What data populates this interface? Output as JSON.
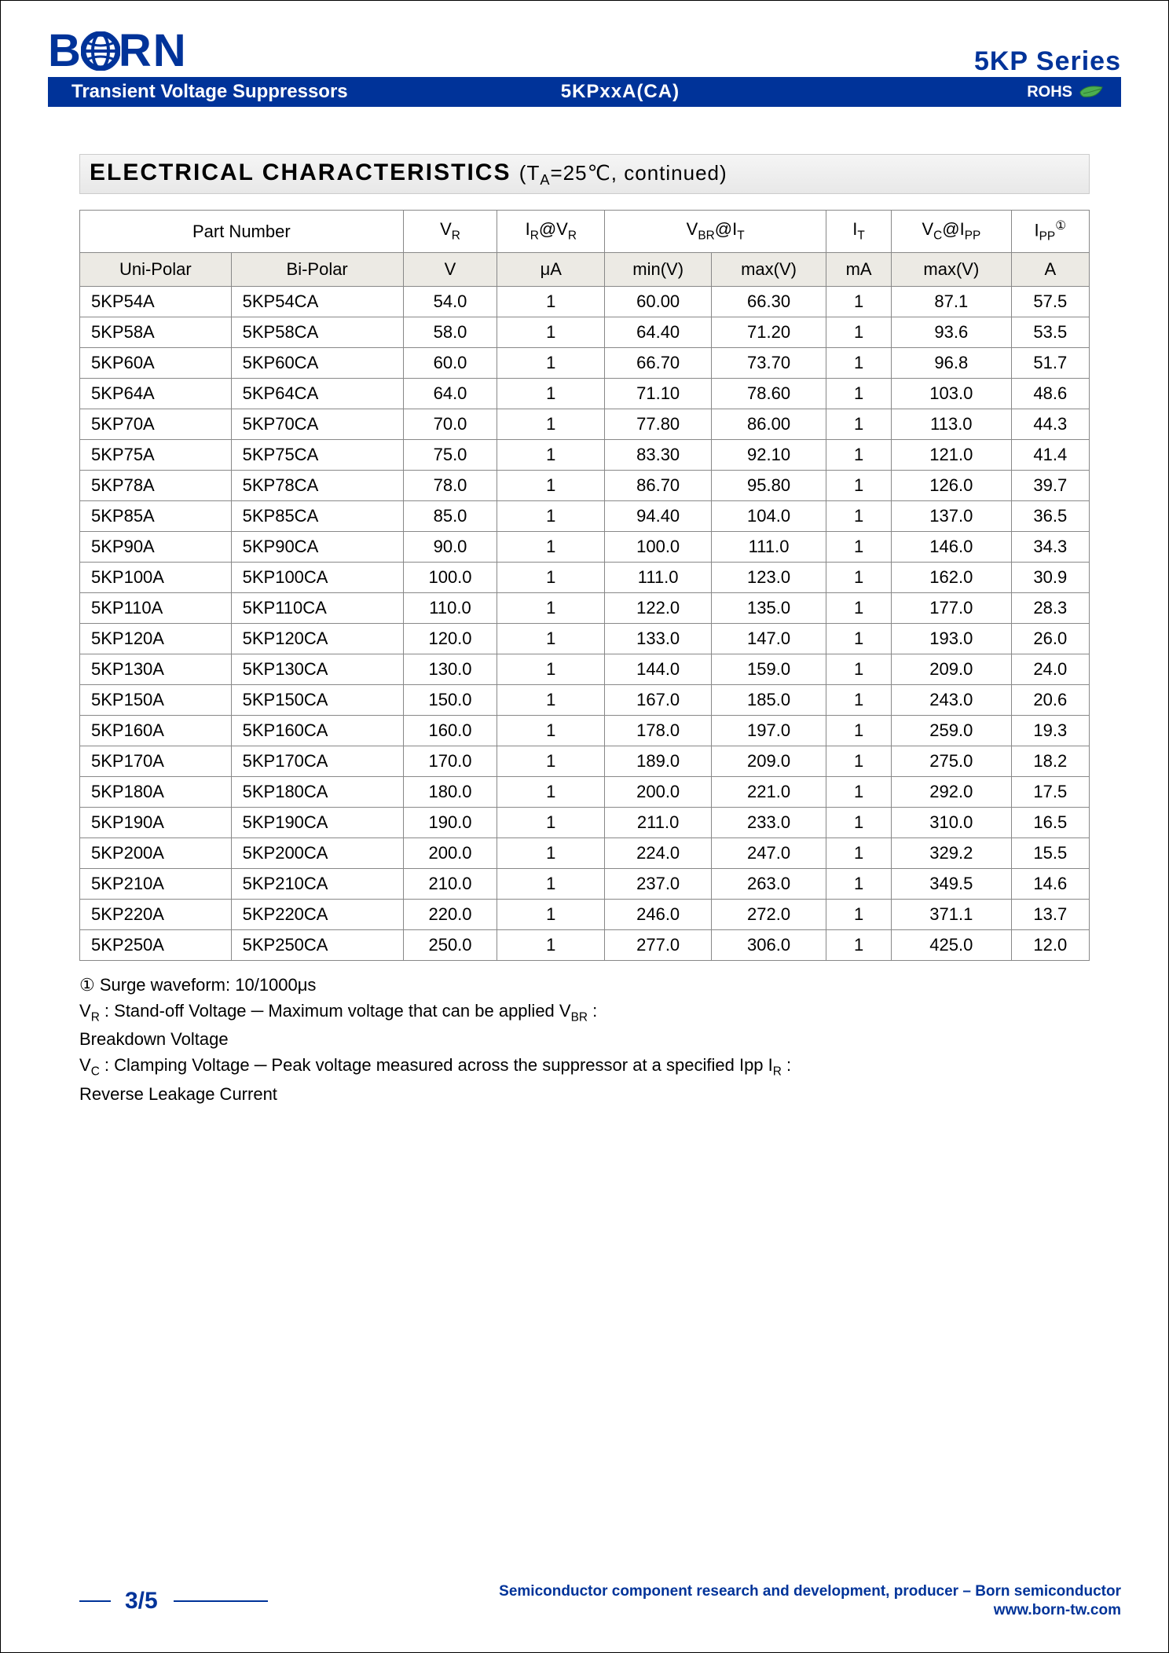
{
  "header": {
    "brand_prefix": "B",
    "brand_suffix": "RN",
    "series_label": "5KP Series",
    "bar_left": "Transient Voltage Suppressors",
    "bar_center": "5KPxxA(CA)",
    "bar_right_label": "ROHS"
  },
  "section": {
    "title": "ELECTRICAL CHARACTERISTICS",
    "condition": "(T",
    "condition_sub": "A",
    "condition_tail": "=25℃, continued)"
  },
  "table": {
    "header1": {
      "part_number": "Part Number",
      "vr": "V",
      "vr_sub": "R",
      "ir_at_vr_pre": "I",
      "ir_sub": "R",
      "ir_at": "@V",
      "ir_sub2": "R",
      "vbr_at_it_v": "V",
      "vbr_sub": "BR",
      "vbr_at": "@I",
      "vbr_sub2": "T",
      "it": "I",
      "it_sub": "T",
      "vc_at_ipp_v": "V",
      "vc_sub": "C",
      "vc_at": "@I",
      "vc_sub2": "PP",
      "ipp": "I",
      "ipp_sub": "PP",
      "ipp_note": "①"
    },
    "header2": {
      "uni": "Uni-Polar",
      "bi": "Bi-Polar",
      "v": "V",
      "ua": "μA",
      "minv": "min(V)",
      "maxv": "max(V)",
      "ma": "mA",
      "maxv2": "max(V)",
      "a": "A"
    },
    "rows": [
      [
        "5KP54A",
        "5KP54CA",
        "54.0",
        "1",
        "60.00",
        "66.30",
        "1",
        "87.1",
        "57.5"
      ],
      [
        "5KP58A",
        "5KP58CA",
        "58.0",
        "1",
        "64.40",
        "71.20",
        "1",
        "93.6",
        "53.5"
      ],
      [
        "5KP60A",
        "5KP60CA",
        "60.0",
        "1",
        "66.70",
        "73.70",
        "1",
        "96.8",
        "51.7"
      ],
      [
        "5KP64A",
        "5KP64CA",
        "64.0",
        "1",
        "71.10",
        "78.60",
        "1",
        "103.0",
        "48.6"
      ],
      [
        "5KP70A",
        "5KP70CA",
        "70.0",
        "1",
        "77.80",
        "86.00",
        "1",
        "113.0",
        "44.3"
      ],
      [
        "5KP75A",
        "5KP75CA",
        "75.0",
        "1",
        "83.30",
        "92.10",
        "1",
        "121.0",
        "41.4"
      ],
      [
        "5KP78A",
        "5KP78CA",
        "78.0",
        "1",
        "86.70",
        "95.80",
        "1",
        "126.0",
        "39.7"
      ],
      [
        "5KP85A",
        "5KP85CA",
        "85.0",
        "1",
        "94.40",
        "104.0",
        "1",
        "137.0",
        "36.5"
      ],
      [
        "5KP90A",
        "5KP90CA",
        "90.0",
        "1",
        "100.0",
        "111.0",
        "1",
        "146.0",
        "34.3"
      ],
      [
        "5KP100A",
        "5KP100CA",
        "100.0",
        "1",
        "111.0",
        "123.0",
        "1",
        "162.0",
        "30.9"
      ],
      [
        "5KP110A",
        "5KP110CA",
        "110.0",
        "1",
        "122.0",
        "135.0",
        "1",
        "177.0",
        "28.3"
      ],
      [
        "5KP120A",
        "5KP120CA",
        "120.0",
        "1",
        "133.0",
        "147.0",
        "1",
        "193.0",
        "26.0"
      ],
      [
        "5KP130A",
        "5KP130CA",
        "130.0",
        "1",
        "144.0",
        "159.0",
        "1",
        "209.0",
        "24.0"
      ],
      [
        "5KP150A",
        "5KP150CA",
        "150.0",
        "1",
        "167.0",
        "185.0",
        "1",
        "243.0",
        "20.6"
      ],
      [
        "5KP160A",
        "5KP160CA",
        "160.0",
        "1",
        "178.0",
        "197.0",
        "1",
        "259.0",
        "19.3"
      ],
      [
        "5KP170A",
        "5KP170CA",
        "170.0",
        "1",
        "189.0",
        "209.0",
        "1",
        "275.0",
        "18.2"
      ],
      [
        "5KP180A",
        "5KP180CA",
        "180.0",
        "1",
        "200.0",
        "221.0",
        "1",
        "292.0",
        "17.5"
      ],
      [
        "5KP190A",
        "5KP190CA",
        "190.0",
        "1",
        "211.0",
        "233.0",
        "1",
        "310.0",
        "16.5"
      ],
      [
        "5KP200A",
        "5KP200CA",
        "200.0",
        "1",
        "224.0",
        "247.0",
        "1",
        "329.2",
        "15.5"
      ],
      [
        "5KP210A",
        "5KP210CA",
        "210.0",
        "1",
        "237.0",
        "263.0",
        "1",
        "349.5",
        "14.6"
      ],
      [
        "5KP220A",
        "5KP220CA",
        "220.0",
        "1",
        "246.0",
        "272.0",
        "1",
        "371.1",
        "13.7"
      ],
      [
        "5KP250A",
        "5KP250CA",
        "250.0",
        "1",
        "277.0",
        "306.0",
        "1",
        "425.0",
        "12.0"
      ]
    ]
  },
  "footnotes": {
    "l1": "① Surge waveform: 10/1000μs",
    "l2_a": "V",
    "l2_a_sub": "R",
    "l2_b": " : Stand-off Voltage ─ Maximum voltage that can be applied V",
    "l2_b_sub": "BR",
    "l2_c": " :",
    "l3": "Breakdown Voltage",
    "l4_a": "V",
    "l4_a_sub": "C",
    "l4_b": " : Clamping Voltage ─ Peak voltage measured across the suppressor at a specified Ipp I",
    "l4_b_sub": "R",
    "l4_c": " :",
    "l5": "Reverse Leakage Current"
  },
  "footer": {
    "page": "3/5",
    "text": "Semiconductor component research and development, producer – Born semiconductor",
    "url": "www.born-tw.com"
  }
}
